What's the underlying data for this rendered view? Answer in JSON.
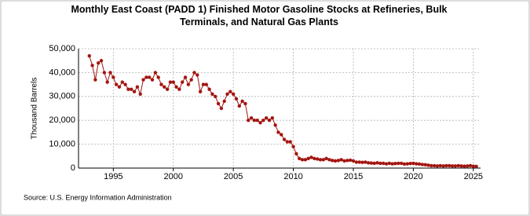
{
  "chart_data": {
    "type": "line",
    "title": "Monthly East Coast (PADD 1) Finished Motor Gasoline Stocks at Refineries, Bulk Terminals, and Natural Gas Plants",
    "ylabel": "Thousand Barrels",
    "source": "Source: U.S. Energy Information Administration",
    "color": "#a3140f",
    "grid": true,
    "xlim": [
      1992.1,
      2025.6
    ],
    "ylim": [
      0,
      50000
    ],
    "xticks": [
      1995,
      2000,
      2005,
      2010,
      2015,
      2020,
      2025
    ],
    "yticks": [
      0,
      {
        "value": 10000,
        "label": "10,000"
      },
      {
        "value": 20000,
        "label": "20,000"
      },
      {
        "value": 30000,
        "label": "30,000"
      },
      {
        "value": 40000,
        "label": "40,000"
      },
      {
        "value": 50000,
        "label": "50,000"
      }
    ],
    "x": [
      1993,
      1993.25,
      1993.5,
      1993.75,
      1994,
      1994.25,
      1994.5,
      1994.75,
      1995,
      1995.25,
      1995.5,
      1995.75,
      1996,
      1996.25,
      1996.5,
      1996.75,
      1997,
      1997.25,
      1997.5,
      1997.75,
      1998,
      1998.25,
      1998.5,
      1998.75,
      1999,
      1999.25,
      1999.5,
      1999.75,
      2000,
      2000.25,
      2000.5,
      2000.75,
      2001,
      2001.25,
      2001.5,
      2001.75,
      2002,
      2002.25,
      2002.5,
      2002.75,
      2003,
      2003.25,
      2003.5,
      2003.75,
      2004,
      2004.25,
      2004.5,
      2004.75,
      2005,
      2005.25,
      2005.5,
      2005.75,
      2006,
      2006.25,
      2006.5,
      2006.75,
      2007,
      2007.25,
      2007.5,
      2007.75,
      2008,
      2008.25,
      2008.5,
      2008.75,
      2009,
      2009.25,
      2009.5,
      2009.75,
      2010,
      2010.25,
      2010.5,
      2010.75,
      2011,
      2011.25,
      2011.5,
      2011.75,
      2012,
      2012.25,
      2012.5,
      2012.75,
      2013,
      2013.25,
      2013.5,
      2013.75,
      2014,
      2014.25,
      2014.5,
      2014.75,
      2015,
      2015.25,
      2015.5,
      2015.75,
      2016,
      2016.25,
      2016.5,
      2016.75,
      2017,
      2017.25,
      2017.5,
      2017.75,
      2018,
      2018.25,
      2018.5,
      2018.75,
      2019,
      2019.25,
      2019.5,
      2019.75,
      2020,
      2020.25,
      2020.5,
      2020.75,
      2021,
      2021.25,
      2021.5,
      2021.75,
      2022,
      2022.25,
      2022.5,
      2022.75,
      2023,
      2023.25,
      2023.5,
      2023.75,
      2024,
      2024.25,
      2024.5,
      2024.75,
      2025,
      2025.25
    ],
    "values": [
      47000,
      43000,
      37000,
      44000,
      45000,
      40000,
      36000,
      40000,
      38000,
      35000,
      34000,
      36000,
      35000,
      33000,
      33000,
      32000,
      34000,
      31000,
      37000,
      38000,
      38000,
      37000,
      40000,
      38000,
      35000,
      34000,
      33000,
      36000,
      36000,
      34000,
      33000,
      36000,
      38000,
      35000,
      37000,
      40000,
      39000,
      32000,
      35000,
      35000,
      33000,
      31000,
      30000,
      27000,
      25000,
      28000,
      31000,
      32000,
      31000,
      29000,
      26000,
      28000,
      27000,
      20000,
      21000,
      20000,
      20000,
      19000,
      20000,
      21000,
      20000,
      21000,
      18000,
      15000,
      14000,
      12000,
      11000,
      11000,
      9000,
      6000,
      4000,
      3500,
      3500,
      4000,
      4500,
      4000,
      3800,
      3500,
      3500,
      4000,
      3500,
      3200,
      3000,
      3200,
      3500,
      3000,
      3200,
      3300,
      3000,
      2500,
      2500,
      2400,
      2500,
      2200,
      2100,
      2000,
      2200,
      2000,
      2000,
      1800,
      2000,
      1800,
      1900,
      2000,
      2000,
      1700,
      1800,
      1900,
      2000,
      1800,
      1700,
      1500,
      1400,
      1200,
      1000,
      1000,
      900,
      1000,
      900,
      1000,
      1000,
      900,
      900,
      1000,
      900,
      800,
      900,
      1000,
      800,
      700
    ]
  }
}
